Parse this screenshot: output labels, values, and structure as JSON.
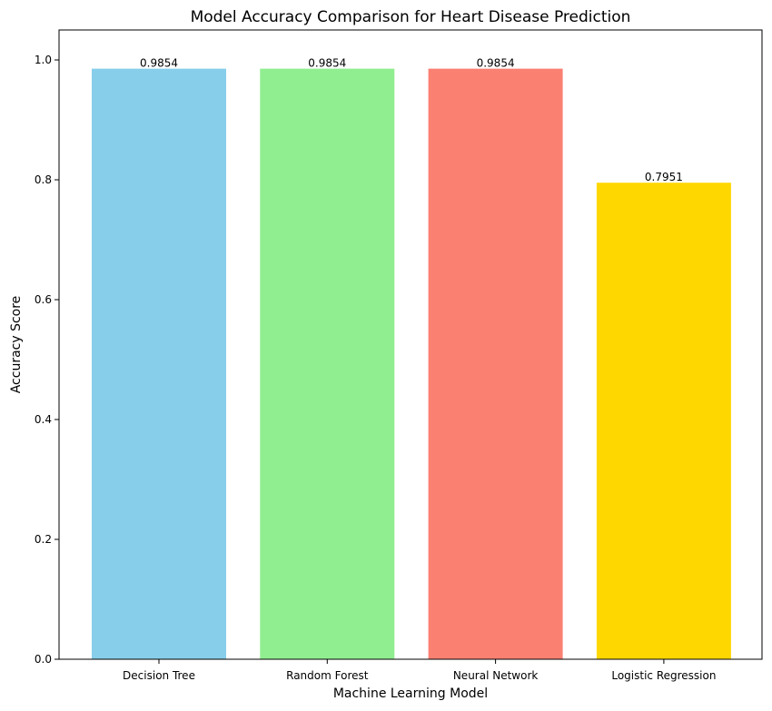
{
  "chart_data": {
    "type": "bar",
    "title": "Model Accuracy Comparison for Heart Disease Prediction",
    "xlabel": "Machine Learning Model",
    "ylabel": "Accuracy Score",
    "categories": [
      "Decision Tree",
      "Random Forest",
      "Neural Network",
      "Logistic Regression"
    ],
    "values": [
      0.9854,
      0.9854,
      0.9854,
      0.7951
    ],
    "value_labels": [
      "0.9854",
      "0.9854",
      "0.9854",
      "0.7951"
    ],
    "colors": [
      "#87ceeb",
      "#90ee90",
      "#fa8072",
      "#ffd700"
    ],
    "ylim": [
      0,
      1.05
    ],
    "yticks": [
      0.0,
      0.2,
      0.4,
      0.6,
      0.8,
      1.0
    ],
    "ytick_labels": [
      "0.0",
      "0.2",
      "0.4",
      "0.6",
      "0.8",
      "1.0"
    ],
    "grid": false,
    "legend": "none"
  }
}
